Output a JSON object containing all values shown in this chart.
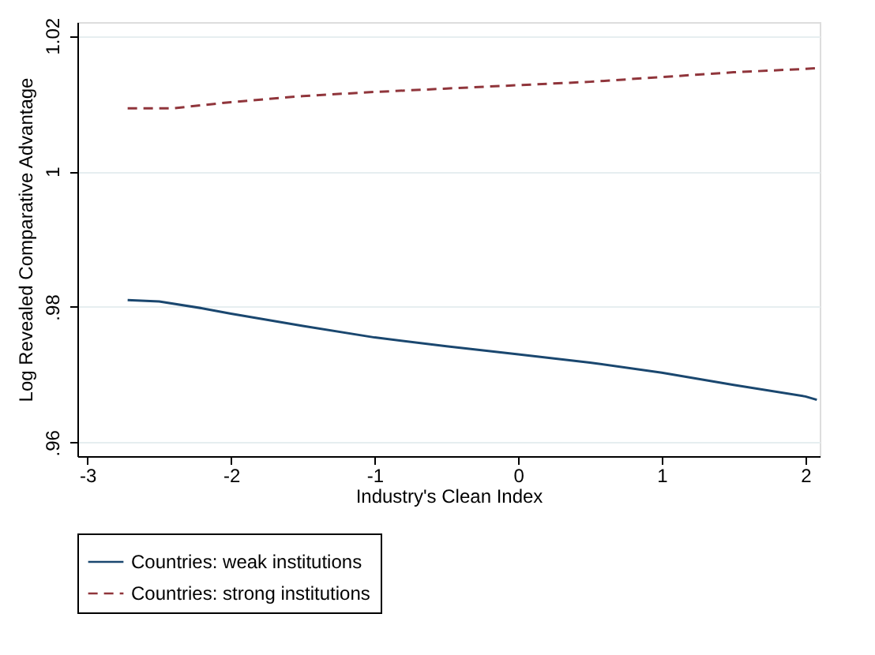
{
  "chart_data": {
    "type": "line",
    "xlabel": "Industry's Clean Index",
    "ylabel": "Log Revealed Comparative Advantage",
    "xlim": [
      -3.07,
      2.1
    ],
    "xticks": [
      -3,
      -2,
      -1,
      0,
      1,
      2
    ],
    "ylim": [
      0.958,
      1.022
    ],
    "yticks": [
      {
        "value": 0.96,
        "label": ".96"
      },
      {
        "value": 0.98,
        "label": ".98"
      },
      1,
      1.02
    ],
    "grid": "y",
    "legend": "bottom",
    "series": [
      {
        "name": "Countries: weak institutions",
        "color": "#1a476f",
        "line_style": "solid",
        "x": [
          -2.72,
          -2.5,
          -2.2,
          -2,
          -1.5,
          -1,
          -0.5,
          0,
          0.5,
          1,
          1.5,
          2,
          2.08
        ],
        "values": [
          0.981,
          0.9808,
          0.9798,
          0.979,
          0.9772,
          0.9755,
          0.9742,
          0.973,
          0.9718,
          0.9703,
          0.9685,
          0.9668,
          0.9663
        ]
      },
      {
        "name": "Countries: strong institutions",
        "color": "#90353b",
        "line_style": "dashed",
        "x": [
          -2.72,
          -2.4,
          -2,
          -1.5,
          -1,
          -0.5,
          0,
          0.5,
          1,
          1.5,
          2,
          2.08
        ],
        "values": [
          1.0093,
          1.0093,
          1.0102,
          1.0111,
          1.0117,
          1.0122,
          1.0127,
          1.0132,
          1.0139,
          1.0146,
          1.0151,
          1.0152
        ]
      }
    ]
  }
}
